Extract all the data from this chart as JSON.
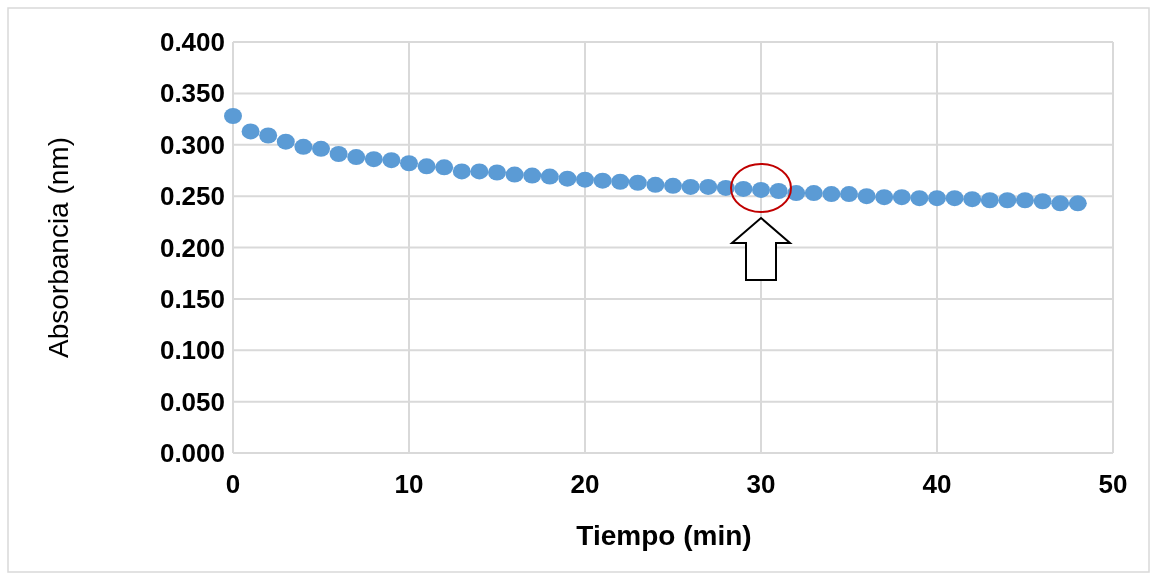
{
  "chart_data": {
    "type": "scatter",
    "xlabel": "Tiempo (min)",
    "ylabel": "Absorbancia (nm)",
    "x": [
      0,
      1,
      2,
      3,
      4,
      5,
      6,
      7,
      8,
      9,
      10,
      11,
      12,
      13,
      14,
      15,
      16,
      17,
      18,
      19,
      20,
      21,
      22,
      23,
      24,
      25,
      26,
      27,
      28,
      29,
      30,
      31,
      32,
      33,
      34,
      35,
      36,
      37,
      38,
      39,
      40,
      41,
      42,
      43,
      44,
      45,
      46,
      47,
      48
    ],
    "series": [
      {
        "color": "#5b9bd5",
        "values": [
          0.328,
          0.313,
          0.309,
          0.303,
          0.298,
          0.296,
          0.291,
          0.288,
          0.286,
          0.285,
          0.282,
          0.279,
          0.278,
          0.274,
          0.274,
          0.273,
          0.271,
          0.27,
          0.269,
          0.267,
          0.266,
          0.265,
          0.264,
          0.263,
          0.261,
          0.26,
          0.259,
          0.259,
          0.258,
          0.257,
          0.256,
          0.255,
          0.253,
          0.253,
          0.252,
          0.252,
          0.25,
          0.249,
          0.249,
          0.248,
          0.248,
          0.248,
          0.247,
          0.246,
          0.246,
          0.246,
          0.245,
          0.243,
          0.243
        ]
      }
    ],
    "xlim": [
      0,
      50
    ],
    "xticks": [
      0,
      10,
      20,
      30,
      40,
      50
    ],
    "ylim": [
      0,
      0.4
    ],
    "yticks": [
      {
        "value": 0,
        "label": "0.000"
      },
      {
        "value": 0.05,
        "label": "0.050"
      },
      {
        "value": 0.1,
        "label": "0.100"
      },
      {
        "value": 0.15,
        "label": "0.150"
      },
      {
        "value": 0.2,
        "label": "0.200"
      },
      {
        "value": 0.25,
        "label": "0.250"
      },
      {
        "value": 0.3,
        "label": "0.300"
      },
      {
        "value": 0.35,
        "label": "0.350"
      },
      {
        "value": 0.4,
        "label": "0.400"
      }
    ],
    "grid": true,
    "marker": "circle"
  }
}
